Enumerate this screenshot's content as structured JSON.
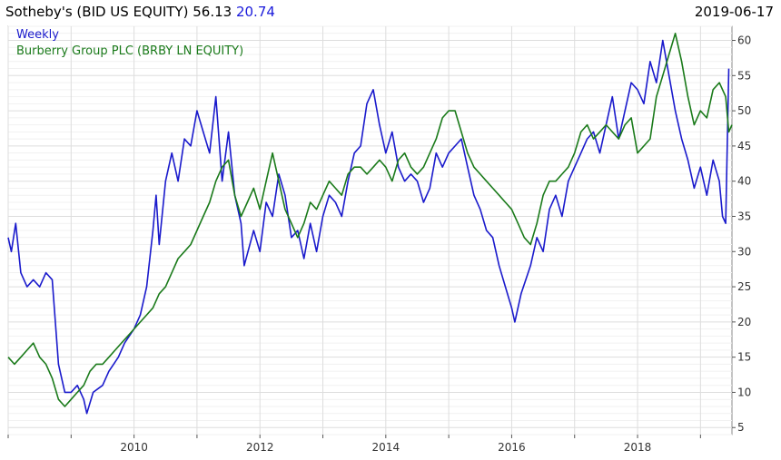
{
  "header": {
    "ticker": "Sotheby's (BID US EQUITY)",
    "last_price": "56.13",
    "secondary_value": "20.74",
    "date": "2019-06-17"
  },
  "colors": {
    "primary_series": "#1a1acc",
    "secondary_series": "#1a7a1a",
    "grid": "#dddddd",
    "axis": "#555555"
  },
  "chart_data": {
    "type": "line",
    "frequency_label": "Weekly",
    "x_axis": {
      "type": "date",
      "ticks": [
        "2010",
        "2012",
        "2014",
        "2016",
        "2018"
      ],
      "range": [
        2008.0,
        2019.5
      ]
    },
    "y_axis": {
      "position": "right",
      "ticks": [
        5,
        10,
        15,
        20,
        25,
        30,
        35,
        40,
        45,
        50,
        55,
        60
      ],
      "range": [
        4,
        62
      ]
    },
    "grid": true,
    "legend_position": "top-left",
    "series": [
      {
        "name": "Weekly",
        "color": "#1a1acc",
        "points": [
          [
            2008.0,
            32
          ],
          [
            2008.05,
            30
          ],
          [
            2008.12,
            34
          ],
          [
            2008.2,
            27
          ],
          [
            2008.3,
            25
          ],
          [
            2008.4,
            26
          ],
          [
            2008.5,
            25
          ],
          [
            2008.6,
            27
          ],
          [
            2008.7,
            26
          ],
          [
            2008.8,
            14
          ],
          [
            2008.9,
            10
          ],
          [
            2009.0,
            10
          ],
          [
            2009.1,
            11
          ],
          [
            2009.2,
            9
          ],
          [
            2009.25,
            7
          ],
          [
            2009.35,
            10
          ],
          [
            2009.5,
            11
          ],
          [
            2009.6,
            13
          ],
          [
            2009.75,
            15
          ],
          [
            2009.85,
            17
          ],
          [
            2010.0,
            19
          ],
          [
            2010.1,
            21
          ],
          [
            2010.2,
            25
          ],
          [
            2010.3,
            33
          ],
          [
            2010.35,
            38
          ],
          [
            2010.4,
            31
          ],
          [
            2010.5,
            40
          ],
          [
            2010.6,
            44
          ],
          [
            2010.7,
            40
          ],
          [
            2010.8,
            46
          ],
          [
            2010.9,
            45
          ],
          [
            2011.0,
            50
          ],
          [
            2011.1,
            47
          ],
          [
            2011.2,
            44
          ],
          [
            2011.3,
            52
          ],
          [
            2011.4,
            40
          ],
          [
            2011.5,
            47
          ],
          [
            2011.6,
            38
          ],
          [
            2011.7,
            34
          ],
          [
            2011.75,
            28
          ],
          [
            2011.9,
            33
          ],
          [
            2012.0,
            30
          ],
          [
            2012.1,
            37
          ],
          [
            2012.2,
            35
          ],
          [
            2012.3,
            41
          ],
          [
            2012.4,
            38
          ],
          [
            2012.5,
            32
          ],
          [
            2012.6,
            33
          ],
          [
            2012.7,
            29
          ],
          [
            2012.8,
            34
          ],
          [
            2012.9,
            30
          ],
          [
            2013.0,
            35
          ],
          [
            2013.1,
            38
          ],
          [
            2013.2,
            37
          ],
          [
            2013.3,
            35
          ],
          [
            2013.4,
            40
          ],
          [
            2013.5,
            44
          ],
          [
            2013.6,
            45
          ],
          [
            2013.7,
            51
          ],
          [
            2013.8,
            53
          ],
          [
            2013.9,
            48
          ],
          [
            2014.0,
            44
          ],
          [
            2014.1,
            47
          ],
          [
            2014.2,
            42
          ],
          [
            2014.3,
            40
          ],
          [
            2014.4,
            41
          ],
          [
            2014.5,
            40
          ],
          [
            2014.6,
            37
          ],
          [
            2014.7,
            39
          ],
          [
            2014.8,
            44
          ],
          [
            2014.9,
            42
          ],
          [
            2015.0,
            44
          ],
          [
            2015.1,
            45
          ],
          [
            2015.2,
            46
          ],
          [
            2015.3,
            42
          ],
          [
            2015.4,
            38
          ],
          [
            2015.5,
            36
          ],
          [
            2015.6,
            33
          ],
          [
            2015.7,
            32
          ],
          [
            2015.8,
            28
          ],
          [
            2015.9,
            25
          ],
          [
            2016.0,
            22
          ],
          [
            2016.05,
            20
          ],
          [
            2016.15,
            24
          ],
          [
            2016.3,
            28
          ],
          [
            2016.4,
            32
          ],
          [
            2016.5,
            30
          ],
          [
            2016.6,
            36
          ],
          [
            2016.7,
            38
          ],
          [
            2016.8,
            35
          ],
          [
            2016.9,
            40
          ],
          [
            2017.0,
            42
          ],
          [
            2017.1,
            44
          ],
          [
            2017.2,
            46
          ],
          [
            2017.3,
            47
          ],
          [
            2017.4,
            44
          ],
          [
            2017.5,
            48
          ],
          [
            2017.6,
            52
          ],
          [
            2017.7,
            46
          ],
          [
            2017.8,
            50
          ],
          [
            2017.9,
            54
          ],
          [
            2018.0,
            53
          ],
          [
            2018.1,
            51
          ],
          [
            2018.2,
            57
          ],
          [
            2018.3,
            54
          ],
          [
            2018.4,
            60
          ],
          [
            2018.5,
            55
          ],
          [
            2018.6,
            50
          ],
          [
            2018.7,
            46
          ],
          [
            2018.8,
            43
          ],
          [
            2018.9,
            39
          ],
          [
            2019.0,
            42
          ],
          [
            2019.1,
            38
          ],
          [
            2019.2,
            43
          ],
          [
            2019.3,
            40
          ],
          [
            2019.35,
            35
          ],
          [
            2019.4,
            34
          ],
          [
            2019.45,
            56
          ]
        ]
      },
      {
        "name": "Burberry Group PLC (BRBY LN EQUITY)",
        "color": "#1a7a1a",
        "points": [
          [
            2008.0,
            15
          ],
          [
            2008.1,
            14
          ],
          [
            2008.2,
            15
          ],
          [
            2008.3,
            16
          ],
          [
            2008.4,
            17
          ],
          [
            2008.5,
            15
          ],
          [
            2008.6,
            14
          ],
          [
            2008.7,
            12
          ],
          [
            2008.8,
            9
          ],
          [
            2008.9,
            8
          ],
          [
            2009.0,
            9
          ],
          [
            2009.1,
            10
          ],
          [
            2009.2,
            11
          ],
          [
            2009.3,
            13
          ],
          [
            2009.4,
            14
          ],
          [
            2009.5,
            14
          ],
          [
            2009.6,
            15
          ],
          [
            2009.7,
            16
          ],
          [
            2009.8,
            17
          ],
          [
            2009.9,
            18
          ],
          [
            2010.0,
            19
          ],
          [
            2010.1,
            20
          ],
          [
            2010.2,
            21
          ],
          [
            2010.3,
            22
          ],
          [
            2010.4,
            24
          ],
          [
            2010.5,
            25
          ],
          [
            2010.6,
            27
          ],
          [
            2010.7,
            29
          ],
          [
            2010.8,
            30
          ],
          [
            2010.9,
            31
          ],
          [
            2011.0,
            33
          ],
          [
            2011.1,
            35
          ],
          [
            2011.2,
            37
          ],
          [
            2011.3,
            40
          ],
          [
            2011.4,
            42
          ],
          [
            2011.5,
            43
          ],
          [
            2011.6,
            38
          ],
          [
            2011.7,
            35
          ],
          [
            2011.8,
            37
          ],
          [
            2011.9,
            39
          ],
          [
            2012.0,
            36
          ],
          [
            2012.1,
            40
          ],
          [
            2012.2,
            44
          ],
          [
            2012.3,
            40
          ],
          [
            2012.4,
            36
          ],
          [
            2012.5,
            34
          ],
          [
            2012.6,
            32
          ],
          [
            2012.7,
            34
          ],
          [
            2012.8,
            37
          ],
          [
            2012.9,
            36
          ],
          [
            2013.0,
            38
          ],
          [
            2013.1,
            40
          ],
          [
            2013.2,
            39
          ],
          [
            2013.3,
            38
          ],
          [
            2013.4,
            41
          ],
          [
            2013.5,
            42
          ],
          [
            2013.6,
            42
          ],
          [
            2013.7,
            41
          ],
          [
            2013.8,
            42
          ],
          [
            2013.9,
            43
          ],
          [
            2014.0,
            42
          ],
          [
            2014.1,
            40
          ],
          [
            2014.2,
            43
          ],
          [
            2014.3,
            44
          ],
          [
            2014.4,
            42
          ],
          [
            2014.5,
            41
          ],
          [
            2014.6,
            42
          ],
          [
            2014.7,
            44
          ],
          [
            2014.8,
            46
          ],
          [
            2014.9,
            49
          ],
          [
            2015.0,
            50
          ],
          [
            2015.1,
            50
          ],
          [
            2015.2,
            47
          ],
          [
            2015.3,
            44
          ],
          [
            2015.4,
            42
          ],
          [
            2015.5,
            41
          ],
          [
            2015.6,
            40
          ],
          [
            2015.7,
            39
          ],
          [
            2015.8,
            38
          ],
          [
            2015.9,
            37
          ],
          [
            2016.0,
            36
          ],
          [
            2016.1,
            34
          ],
          [
            2016.2,
            32
          ],
          [
            2016.3,
            31
          ],
          [
            2016.4,
            34
          ],
          [
            2016.5,
            38
          ],
          [
            2016.6,
            40
          ],
          [
            2016.7,
            40
          ],
          [
            2016.8,
            41
          ],
          [
            2016.9,
            42
          ],
          [
            2017.0,
            44
          ],
          [
            2017.1,
            47
          ],
          [
            2017.2,
            48
          ],
          [
            2017.3,
            46
          ],
          [
            2017.4,
            47
          ],
          [
            2017.5,
            48
          ],
          [
            2017.6,
            47
          ],
          [
            2017.7,
            46
          ],
          [
            2017.8,
            48
          ],
          [
            2017.9,
            49
          ],
          [
            2018.0,
            44
          ],
          [
            2018.1,
            45
          ],
          [
            2018.2,
            46
          ],
          [
            2018.3,
            52
          ],
          [
            2018.4,
            55
          ],
          [
            2018.5,
            58
          ],
          [
            2018.6,
            61
          ],
          [
            2018.7,
            57
          ],
          [
            2018.8,
            52
          ],
          [
            2018.9,
            48
          ],
          [
            2019.0,
            50
          ],
          [
            2019.1,
            49
          ],
          [
            2019.2,
            53
          ],
          [
            2019.3,
            54
          ],
          [
            2019.4,
            52
          ],
          [
            2019.45,
            47
          ],
          [
            2019.5,
            48
          ]
        ]
      }
    ]
  }
}
